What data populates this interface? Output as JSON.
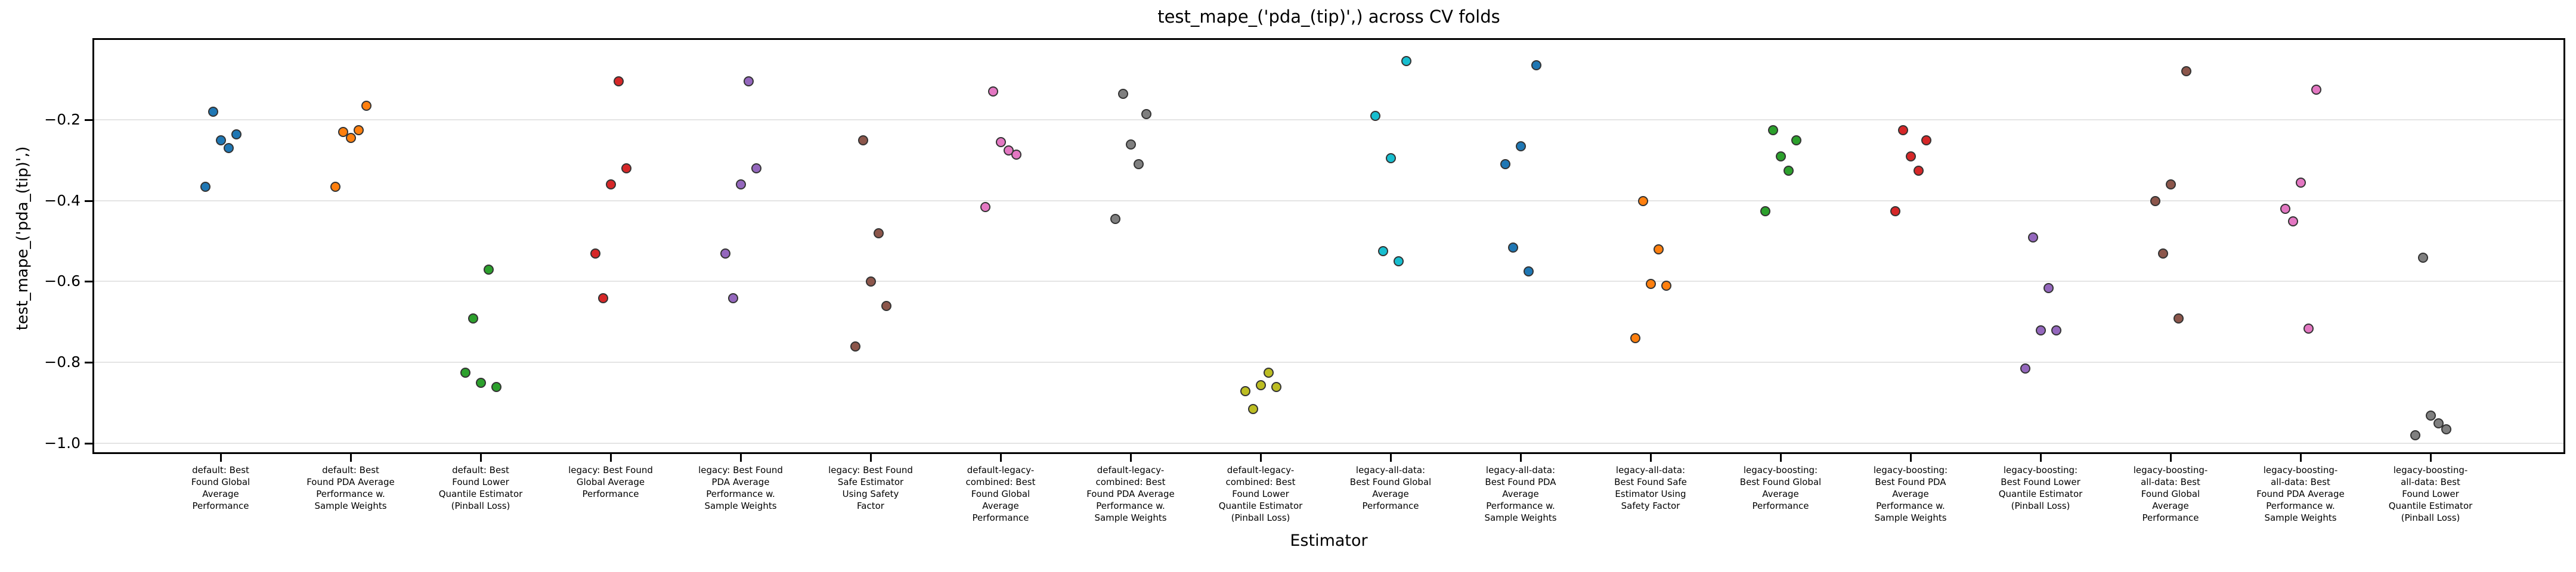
{
  "figure": {
    "title": "test_mape_('pda_(tip)',) across CV folds",
    "xlabel": "Estimator",
    "ylabel": "test_mape_('pda_(tip)',)"
  },
  "chart_data": {
    "type": "scatter",
    "subtype": "strip-plot-of-cv-fold-scores",
    "title": "test_mape_('pda_(tip)',) across CV folds",
    "xlabel": "Estimator",
    "ylabel": "test_mape_('pda_(tip)',)",
    "ylim": [
      -1.022,
      -0.003
    ],
    "yticks": [
      -0.2,
      -0.4,
      -0.6,
      -0.8,
      -1.0
    ],
    "ytick_labels": [
      "−0.2",
      "−0.4",
      "−0.6",
      "−0.8",
      "−1.0"
    ],
    "grid": "horizontal",
    "grid_color": "#e4e4e4",
    "legend": "none",
    "marker_edge_color": "#333333",
    "points_per_category": 5,
    "categories": [
      {
        "label": "default: Best Found Global Average Performance",
        "lines": [
          "default: Best",
          "Found Global",
          "Average",
          "Performance"
        ],
        "color": "#1f77b4",
        "points": [
          [
            -0.18,
            -13
          ],
          [
            -0.235,
            26
          ],
          [
            -0.25,
            0
          ],
          [
            -0.27,
            13
          ],
          [
            -0.365,
            -26
          ]
        ]
      },
      {
        "label": "default: Best Found PDA Average Performance w. Sample Weights",
        "lines": [
          "default: Best",
          "Found PDA Average",
          "Performance w.",
          "Sample Weights"
        ],
        "color": "#ff7f0e",
        "points": [
          [
            -0.165,
            26
          ],
          [
            -0.225,
            13
          ],
          [
            -0.23,
            -13
          ],
          [
            -0.245,
            0
          ],
          [
            -0.365,
            -26
          ]
        ]
      },
      {
        "label": "default: Best Found Lower Quantile Estimator (Pinball Loss)",
        "lines": [
          "default: Best",
          "Found Lower",
          "Quantile Estimator",
          "(Pinball Loss)"
        ],
        "color": "#2ca02c",
        "points": [
          [
            -0.57,
            13
          ],
          [
            -0.69,
            -13
          ],
          [
            -0.825,
            -26
          ],
          [
            -0.85,
            0
          ],
          [
            -0.86,
            26
          ]
        ]
      },
      {
        "label": "legacy: Best Found Global Average Performance",
        "lines": [
          "legacy: Best Found",
          "Global Average",
          "Performance"
        ],
        "color": "#d62728",
        "points": [
          [
            -0.105,
            13
          ],
          [
            -0.32,
            26
          ],
          [
            -0.36,
            0
          ],
          [
            -0.53,
            -26
          ],
          [
            -0.64,
            -13
          ]
        ]
      },
      {
        "label": "legacy: Best Found PDA Average Performance w. Sample Weights",
        "lines": [
          "legacy: Best Found",
          "PDA Average",
          "Performance w.",
          "Sample Weights"
        ],
        "color": "#9467bd",
        "points": [
          [
            -0.105,
            13
          ],
          [
            -0.32,
            26
          ],
          [
            -0.36,
            0
          ],
          [
            -0.53,
            -26
          ],
          [
            -0.64,
            -13
          ]
        ]
      },
      {
        "label": "legacy: Best Found Safe Estimator Using Safety Factor",
        "lines": [
          "legacy: Best Found",
          "Safe Estimator",
          "Using Safety",
          "Factor"
        ],
        "color": "#8c564b",
        "points": [
          [
            -0.25,
            -13
          ],
          [
            -0.48,
            13
          ],
          [
            -0.6,
            0
          ],
          [
            -0.66,
            26
          ],
          [
            -0.76,
            -26
          ]
        ]
      },
      {
        "label": "default-legacy-combined: Best Found Global Average Performance",
        "lines": [
          "default-legacy-",
          "combined: Best",
          "Found Global",
          "Average",
          "Performance"
        ],
        "color": "#e377c2",
        "points": [
          [
            -0.13,
            -13
          ],
          [
            -0.255,
            0
          ],
          [
            -0.275,
            13
          ],
          [
            -0.285,
            26
          ],
          [
            -0.415,
            -26
          ]
        ]
      },
      {
        "label": "default-legacy-combined: Best Found PDA Average Performance w. Sample Weights",
        "lines": [
          "default-legacy-",
          "combined: Best",
          "Found PDA Average",
          "Performance w.",
          "Sample Weights"
        ],
        "color": "#7f7f7f",
        "points": [
          [
            -0.135,
            -13
          ],
          [
            -0.185,
            26
          ],
          [
            -0.26,
            0
          ],
          [
            -0.31,
            13
          ],
          [
            -0.445,
            -26
          ]
        ]
      },
      {
        "label": "default-legacy-combined: Best Found Lower Quantile Estimator (Pinball Loss)",
        "lines": [
          "default-legacy-",
          "combined: Best",
          "Found Lower",
          "Quantile Estimator",
          "(Pinball Loss)"
        ],
        "color": "#bcbd22",
        "points": [
          [
            -0.825,
            13
          ],
          [
            -0.855,
            0
          ],
          [
            -0.86,
            26
          ],
          [
            -0.87,
            -26
          ],
          [
            -0.915,
            -13
          ]
        ]
      },
      {
        "label": "legacy-all-data: Best Found Global Average Performance",
        "lines": [
          "legacy-all-data:",
          "Best Found Global",
          "Average",
          "Performance"
        ],
        "color": "#17becf",
        "points": [
          [
            -0.055,
            26
          ],
          [
            -0.19,
            -26
          ],
          [
            -0.295,
            0
          ],
          [
            -0.525,
            -13
          ],
          [
            -0.55,
            13
          ]
        ]
      },
      {
        "label": "legacy-all-data: Best Found PDA Average Performance w. Sample Weights",
        "lines": [
          "legacy-all-data:",
          "Best Found PDA",
          "Average",
          "Performance w.",
          "Sample Weights"
        ],
        "color": "#1f77b4",
        "points": [
          [
            -0.065,
            26
          ],
          [
            -0.265,
            0
          ],
          [
            -0.31,
            -26
          ],
          [
            -0.515,
            -13
          ],
          [
            -0.575,
            13
          ]
        ]
      },
      {
        "label": "legacy-all-data: Best Found Safe Estimator Using Safety Factor",
        "lines": [
          "legacy-all-data:",
          "Best Found Safe",
          "Estimator Using",
          "Safety Factor"
        ],
        "color": "#ff7f0e",
        "points": [
          [
            -0.4,
            -13
          ],
          [
            -0.52,
            13
          ],
          [
            -0.605,
            0
          ],
          [
            -0.61,
            26
          ],
          [
            -0.74,
            -26
          ]
        ]
      },
      {
        "label": "legacy-boosting: Best Found Global Average Performance",
        "lines": [
          "legacy-boosting:",
          "Best Found Global",
          "Average",
          "Performance"
        ],
        "color": "#2ca02c",
        "points": [
          [
            -0.225,
            -13
          ],
          [
            -0.25,
            26
          ],
          [
            -0.29,
            0
          ],
          [
            -0.325,
            13
          ],
          [
            -0.425,
            -26
          ]
        ]
      },
      {
        "label": "legacy-boosting: Best Found PDA Average Performance w. Sample Weights",
        "lines": [
          "legacy-boosting:",
          "Best Found PDA",
          "Average",
          "Performance w.",
          "Sample Weights"
        ],
        "color": "#d62728",
        "points": [
          [
            -0.225,
            -13
          ],
          [
            -0.25,
            26
          ],
          [
            -0.29,
            0
          ],
          [
            -0.325,
            13
          ],
          [
            -0.425,
            -26
          ]
        ]
      },
      {
        "label": "legacy-boosting: Best Found Lower Quantile Estimator (Pinball Loss)",
        "lines": [
          "legacy-boosting:",
          "Best Found Lower",
          "Quantile Estimator",
          "(Pinball Loss)"
        ],
        "color": "#9467bd",
        "points": [
          [
            -0.49,
            -13
          ],
          [
            -0.615,
            13
          ],
          [
            -0.72,
            0
          ],
          [
            -0.72,
            26
          ],
          [
            -0.815,
            -26
          ]
        ]
      },
      {
        "label": "legacy-boosting-all-data: Best Found Global Average Performance",
        "lines": [
          "legacy-boosting-",
          "all-data: Best",
          "Found Global",
          "Average",
          "Performance"
        ],
        "color": "#8c564b",
        "points": [
          [
            -0.08,
            26
          ],
          [
            -0.36,
            0
          ],
          [
            -0.4,
            -26
          ],
          [
            -0.53,
            -13
          ],
          [
            -0.69,
            13
          ]
        ]
      },
      {
        "label": "legacy-boosting-all-data: Best Found PDA Average Performance w. Sample Weights",
        "lines": [
          "legacy-boosting-",
          "all-data: Best",
          "Found PDA Average",
          "Performance w.",
          "Sample Weights"
        ],
        "color": "#e377c2",
        "points": [
          [
            -0.125,
            26
          ],
          [
            -0.355,
            0
          ],
          [
            -0.42,
            -26
          ],
          [
            -0.45,
            -13
          ],
          [
            -0.715,
            13
          ]
        ]
      },
      {
        "label": "legacy-boosting-all-data: Best Found Lower Quantile Estimator (Pinball Loss)",
        "lines": [
          "legacy-boosting-",
          "all-data: Best",
          "Found Lower",
          "Quantile Estimator",
          "(Pinball Loss)"
        ],
        "color": "#7f7f7f",
        "points": [
          [
            -0.54,
            -13
          ],
          [
            -0.93,
            0
          ],
          [
            -0.95,
            13
          ],
          [
            -0.965,
            26
          ],
          [
            -0.98,
            -26
          ]
        ]
      }
    ]
  }
}
